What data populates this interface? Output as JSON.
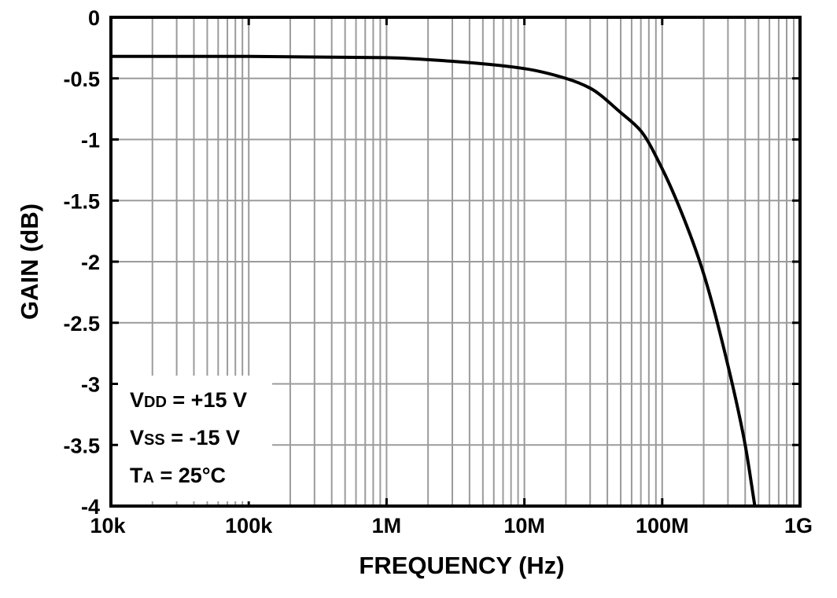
{
  "chart_data": {
    "type": "line",
    "title": "",
    "xlabel": "FREQUENCY (Hz)",
    "ylabel": "GAIN (dB)",
    "xscale": "log",
    "xlim": [
      10000,
      1000000000
    ],
    "ylim": [
      -4,
      0
    ],
    "grid": true,
    "x_tick_labels": [
      "10k",
      "100k",
      "1M",
      "10M",
      "100M",
      "1G"
    ],
    "y_tick_labels": [
      "0",
      "-0.5",
      "-1",
      "-1.5",
      "-2",
      "-2.5",
      "-3",
      "-3.5",
      "-4"
    ],
    "series": [
      {
        "x": [
          10000,
          100000,
          1000000,
          3000000,
          10000000,
          20000000,
          30000000,
          50000000,
          70000000,
          100000000,
          150000000,
          200000000,
          300000000,
          400000000,
          470000000
        ],
        "y": [
          -0.32,
          -0.32,
          -0.33,
          -0.36,
          -0.42,
          -0.5,
          -0.58,
          -0.78,
          -0.93,
          -1.24,
          -1.7,
          -2.1,
          -2.85,
          -3.5,
          -4.0
        ]
      }
    ],
    "annotations": [
      {
        "main": "V",
        "sub": "DD",
        "rest": " = +15 V"
      },
      {
        "main": "V",
        "sub": "SS",
        "rest": " = -15 V"
      },
      {
        "main": "T",
        "sub": "A",
        "rest": " = 25°C"
      }
    ]
  }
}
